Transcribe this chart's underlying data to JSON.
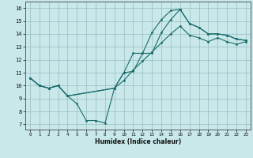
{
  "xlabel": "Humidex (Indice chaleur)",
  "bg_color": "#c8e8ea",
  "grid_color": "#9abcbe",
  "line_color": "#1a6b6b",
  "xlim_min": -0.5,
  "xlim_max": 23.5,
  "ylim_min": 6.6,
  "ylim_max": 16.5,
  "xticks": [
    0,
    1,
    2,
    3,
    4,
    5,
    6,
    7,
    8,
    9,
    10,
    11,
    12,
    13,
    14,
    15,
    16,
    17,
    18,
    19,
    20,
    21,
    22,
    23
  ],
  "yticks": [
    7,
    8,
    9,
    10,
    11,
    12,
    13,
    14,
    15,
    16
  ],
  "curve1": {
    "x": [
      0,
      1,
      2,
      3,
      4,
      5,
      6,
      7,
      8,
      9,
      10,
      11,
      12,
      13,
      14,
      15,
      16,
      17,
      18,
      19,
      20,
      21,
      22,
      23
    ],
    "y": [
      10.6,
      10.0,
      9.8,
      10.0,
      9.2,
      8.6,
      7.3,
      7.3,
      7.1,
      9.8,
      11.0,
      12.5,
      12.5,
      14.1,
      15.1,
      15.8,
      15.9,
      14.8,
      14.5,
      14.0,
      14.0,
      13.9,
      13.6,
      13.5
    ]
  },
  "curve2": {
    "x": [
      0,
      1,
      2,
      3,
      4,
      9,
      10,
      11,
      12,
      13,
      14,
      15,
      16,
      17,
      18,
      19,
      20,
      21,
      22,
      23
    ],
    "y": [
      10.6,
      10.0,
      9.8,
      10.0,
      9.2,
      9.8,
      11.0,
      11.1,
      12.5,
      12.5,
      14.1,
      15.1,
      15.9,
      14.8,
      14.5,
      14.0,
      14.0,
      13.9,
      13.6,
      13.5
    ]
  },
  "curve3": {
    "x": [
      0,
      1,
      2,
      3,
      4,
      9,
      10,
      11,
      12,
      13,
      14,
      15,
      16,
      17,
      18,
      19,
      20,
      21,
      22,
      23
    ],
    "y": [
      10.6,
      10.0,
      9.8,
      10.0,
      9.2,
      9.8,
      10.4,
      11.2,
      11.9,
      12.6,
      13.3,
      14.0,
      14.6,
      13.9,
      13.7,
      13.4,
      13.7,
      13.4,
      13.2,
      13.4
    ]
  }
}
